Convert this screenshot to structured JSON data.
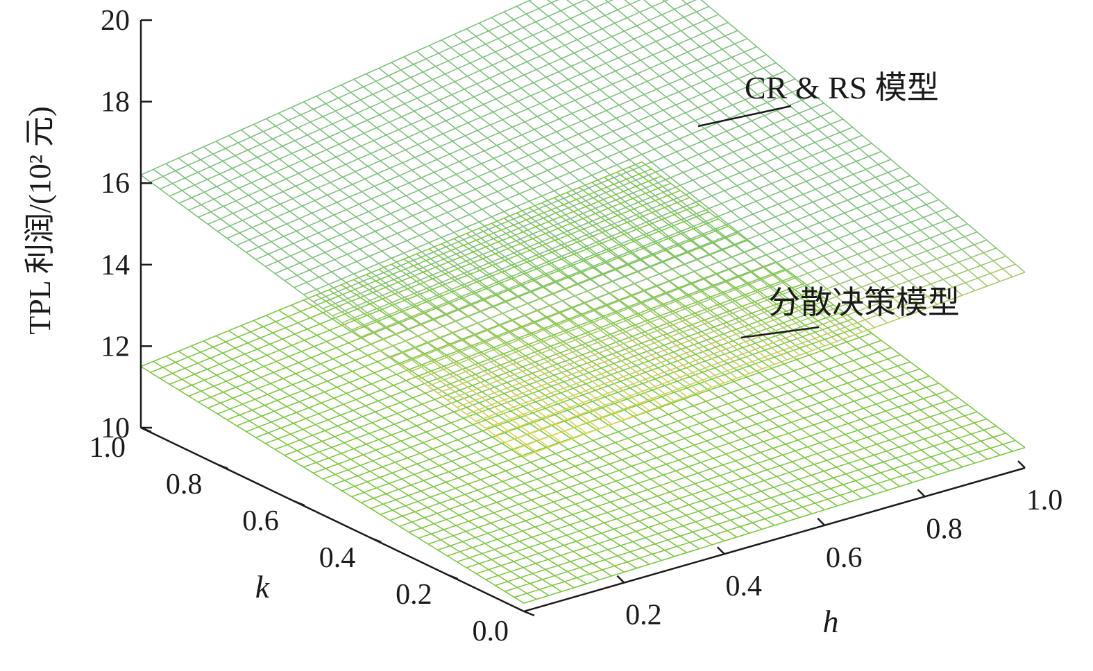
{
  "chart_data": {
    "type": "surface",
    "zlabel": "TPL 利润/(10² 元)",
    "xlabel": "h",
    "ylabel": "k",
    "zlim": [
      10,
      20
    ],
    "z_ticks": [
      "10",
      "12",
      "14",
      "16",
      "18",
      "20"
    ],
    "h_ticks": [
      "0.2",
      "0.4",
      "0.6",
      "0.8",
      "1.0"
    ],
    "k_ticks": [
      "0.0",
      "0.2",
      "0.4",
      "0.6",
      "0.8",
      "1.0"
    ],
    "grid": false,
    "surfaces": [
      {
        "name": "CR & RS 模型",
        "color": "#7fbf7f",
        "low_color": "#e8d84a",
        "corner_values": {
          "h0_k0": 13.8,
          "h1_k0": 14.8,
          "h0_k1": 16.2,
          "h1_k1": 18.2
        }
      },
      {
        "name": "分散决策模型",
        "color": "#7cc840",
        "corner_values": {
          "h0_k0": 10.2,
          "h1_k0": 10.5,
          "h0_k1": 11.5,
          "h1_k1": 13.0
        }
      }
    ],
    "annotations": [
      "CR & RS 模型",
      "分散决策模型"
    ]
  }
}
